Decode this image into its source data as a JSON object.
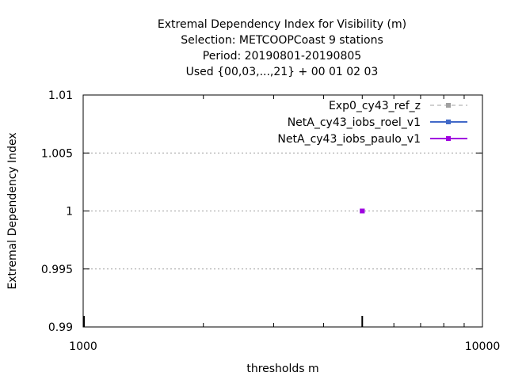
{
  "chart_data": {
    "type": "line",
    "title_lines": [
      "Extremal Dependency Index  for Visibility (m)",
      "Selection: METCOOPCoast      9 stations",
      "Period: 20190801-20190805",
      "Used {00,03,...,21} + 00 01 02 03"
    ],
    "xlabel": "thresholds m",
    "ylabel": "Extremal Dependency Index",
    "x_scale": "log",
    "xlim": [
      1000,
      10000
    ],
    "ylim": [
      0.99,
      1.01
    ],
    "x_ticks": [
      1000,
      10000
    ],
    "x_tick_labels": [
      "1000",
      "10000"
    ],
    "y_ticks": [
      0.99,
      0.995,
      1,
      1.005,
      1.01
    ],
    "y_tick_labels": [
      "0.99",
      "0.995",
      "1",
      "1.005",
      "1.01"
    ],
    "grid": "horizontal-dotted",
    "legend_position": "top-right",
    "series": [
      {
        "name": "Exp0_cy43_ref_z",
        "color": "#a0a0a0",
        "dash": "dashed",
        "points": []
      },
      {
        "name": "NetA_cy43_iobs_roel_v1",
        "color": "#4169c8",
        "dash": "solid",
        "points": [
          [
            5000,
            1
          ]
        ]
      },
      {
        "name": "NetA_cy43_iobs_paulo_v1",
        "color": "#a000e0",
        "dash": "solid",
        "points": [
          [
            5000,
            1
          ]
        ]
      }
    ],
    "x_marker": 5000
  }
}
